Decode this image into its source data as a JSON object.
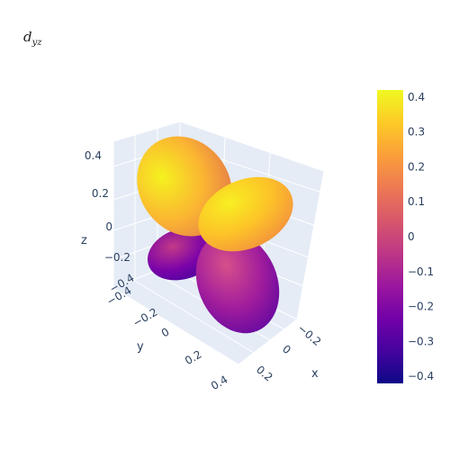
{
  "chart_data": {
    "type": "surface",
    "title": {
      "main": "d",
      "sub": "yz"
    },
    "x_axis": {
      "label": "x",
      "ticks": [
        "−0.2",
        "0",
        "0.2"
      ]
    },
    "y_axis": {
      "label": "y",
      "ticks": [
        "−0.4",
        "−0.2",
        "0",
        "0.2",
        "0.4"
      ]
    },
    "z_axis": {
      "label": "z",
      "ticks": [
        "−0.4",
        "−0.2",
        "0",
        "0.2",
        "0.4"
      ]
    },
    "colorbar": {
      "range": [
        -0.42,
        0.42
      ],
      "ticks": [
        "0.4",
        "0.3",
        "0.2",
        "0.1",
        "0",
        "−0.1",
        "−0.2",
        "−0.3",
        "−0.4"
      ],
      "colors": [
        "#0d0887",
        "#46039f",
        "#7201a8",
        "#9c179e",
        "#bd3786",
        "#d8576b",
        "#ed7953",
        "#fb9f3a",
        "#fdca26",
        "#f0f921"
      ]
    },
    "lobes": [
      {
        "name": "upper-back-lobe",
        "sign": "positive"
      },
      {
        "name": "upper-front-lobe",
        "sign": "positive"
      },
      {
        "name": "lower-back-lobe",
        "sign": "negative"
      },
      {
        "name": "lower-front-lobe",
        "sign": "negative"
      }
    ]
  }
}
